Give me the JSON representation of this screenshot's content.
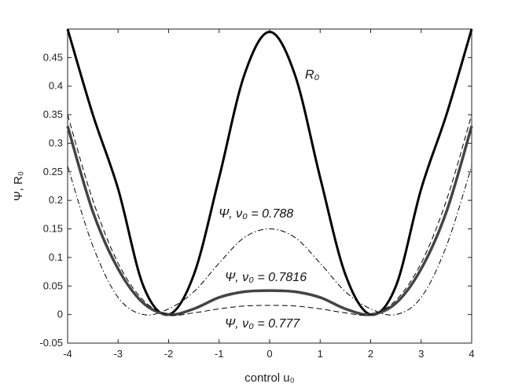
{
  "chart_data": {
    "type": "line",
    "x_label": "control u₀",
    "y_label": "Ψ, R₀",
    "x": [
      -4,
      -3.5,
      -3,
      -2.5,
      -2,
      -1.5,
      -1,
      -0.5,
      0,
      0.5,
      1,
      1.5,
      2,
      2.5,
      3,
      3.5,
      4
    ],
    "series": [
      {
        "name": "R₀",
        "color": "#000000",
        "style": "solid",
        "width": 3,
        "values": [
          0.5,
          0.35,
          0.22,
          0.05,
          0,
          0.07,
          0.24,
          0.42,
          0.495,
          0.42,
          0.24,
          0.07,
          0,
          0.05,
          0.22,
          0.35,
          0.5
        ]
      },
      {
        "name": "Ψ, ν₀ = 0.788",
        "color": "#000000",
        "style": "dashdot",
        "width": 1,
        "values": [
          0.26,
          0.12,
          0.03,
          0,
          0.01,
          0.04,
          0.09,
          0.135,
          0.15,
          0.135,
          0.09,
          0.04,
          0.01,
          0,
          0.03,
          0.12,
          0.26
        ]
      },
      {
        "name": "Ψ, ν₀ = 0.7816",
        "color": "#444444",
        "style": "solid",
        "width": 3.5,
        "values": [
          0.33,
          0.18,
          0.08,
          0.02,
          0,
          0.01,
          0.03,
          0.04,
          0.042,
          0.04,
          0.03,
          0.01,
          0,
          0.02,
          0.08,
          0.18,
          0.33
        ]
      },
      {
        "name": "Ψ, ν₀ = 0.777",
        "color": "#000000",
        "style": "dashed",
        "width": 1,
        "values": [
          0.35,
          0.2,
          0.09,
          0.025,
          0,
          0.003,
          0.01,
          0.015,
          0.016,
          0.015,
          0.01,
          0.003,
          0,
          0.025,
          0.09,
          0.2,
          0.35
        ]
      }
    ],
    "xlim": [
      -4,
      4
    ],
    "ylim": [
      -0.05,
      0.5
    ],
    "xticks": [
      -4,
      -3,
      -2,
      -1,
      0,
      1,
      2,
      3,
      4
    ],
    "yticks": [
      -0.05,
      0,
      0.05,
      0.1,
      0.15,
      0.2,
      0.25,
      0.3,
      0.35,
      0.4,
      0.45
    ]
  }
}
